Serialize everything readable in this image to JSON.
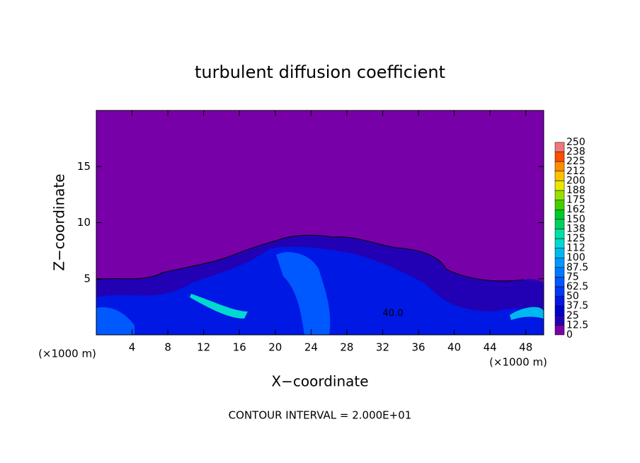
{
  "chart_data": {
    "type": "contour",
    "title": "turbulent diffusion coefficient",
    "x_label": "X−coordinate",
    "y_label": "Z−coordinate",
    "x_units": [
      "(×1000 m)",
      "(×1000 m)"
    ],
    "footer": "CONTOUR INTERVAL = 2.000E+01",
    "contour_label": "40.0",
    "xlim": [
      0,
      50
    ],
    "xticks": [
      4,
      8,
      12,
      16,
      20,
      24,
      28,
      32,
      36,
      40,
      44,
      48
    ],
    "ylim": [
      0,
      20
    ],
    "yticks": [
      5,
      10,
      15
    ],
    "colorbar": {
      "levels": [
        0,
        {
          "value": 12.5,
          "label": "12.5"
        },
        25,
        {
          "value": 37.5,
          "label": "37.5"
        },
        50,
        {
          "value": 62.5,
          "label": "62.5"
        },
        75,
        {
          "value": 87.5,
          "label": "87.5"
        },
        100,
        {
          "value": 112.5,
          "label": "112"
        },
        125,
        {
          "value": 137.5,
          "label": "138"
        },
        150,
        {
          "value": 162.5,
          "label": "162"
        },
        175,
        {
          "value": 187.5,
          "label": "188"
        },
        200,
        {
          "value": 212.5,
          "label": "212"
        },
        225,
        {
          "value": 237.5,
          "label": "238"
        },
        250
      ],
      "colors": [
        "#7800a8",
        "#2200b4",
        "#0000cc",
        "#0018e4",
        "#0038f4",
        "#0058ff",
        "#0078ff",
        "#0098ff",
        "#00b8f0",
        "#00d8d0",
        "#00e0a0",
        "#00d060",
        "#00c828",
        "#40d000",
        "#98e000",
        "#e8e800",
        "#ffc000",
        "#ff8c00",
        "#ff4c00",
        "#f07878"
      ]
    }
  }
}
